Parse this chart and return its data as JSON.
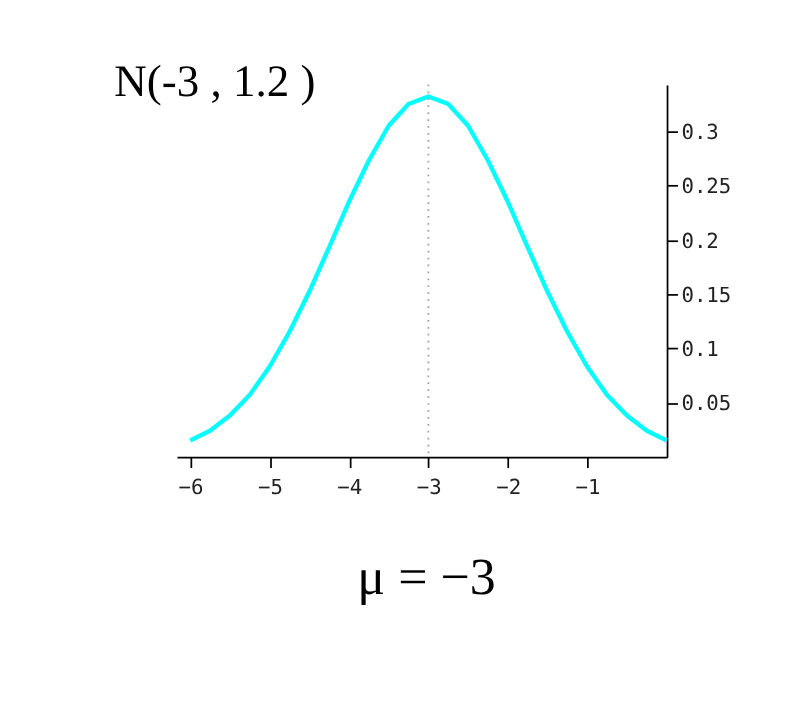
{
  "chart_data": {
    "type": "line",
    "title": "N(-3 , 1.2 )",
    "x": [
      -6,
      -5.75,
      -5.5,
      -5.25,
      -5,
      -4.75,
      -4.5,
      -4.25,
      -4,
      -3.75,
      -3.5,
      -3.25,
      -3,
      -2.75,
      -2.5,
      -2.25,
      -2,
      -1.75,
      -1.5,
      -1.25,
      -1,
      -0.75,
      -0.5,
      -0.25,
      0
    ],
    "series": [
      {
        "color": "#00ffff",
        "values": [
          0.015,
          0.024,
          0.038,
          0.057,
          0.083,
          0.115,
          0.152,
          0.193,
          0.235,
          0.273,
          0.305,
          0.325,
          0.332,
          0.325,
          0.305,
          0.273,
          0.235,
          0.193,
          0.152,
          0.115,
          0.083,
          0.057,
          0.038,
          0.024,
          0.015
        ]
      }
    ],
    "xlim": [
      -6.17,
      0
    ],
    "xticks": [
      -6,
      -5,
      -4,
      -3,
      -2,
      -1
    ],
    "ylim": [
      0,
      0.343
    ],
    "yticks": [
      0.05,
      0.1,
      0.15,
      0.2,
      0.25,
      0.3
    ],
    "ref_lines": [
      {
        "axis": "x",
        "value": -3,
        "color": "#a0a0a0",
        "line_style": "dotted"
      }
    ],
    "annotations": [
      "μ = −3"
    ],
    "grid": false,
    "marker": "none",
    "line_style": "solid"
  }
}
